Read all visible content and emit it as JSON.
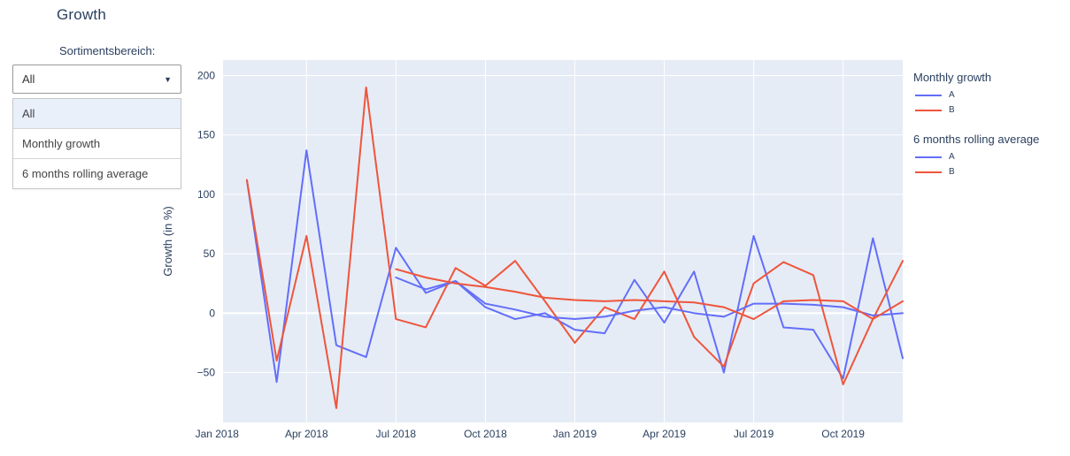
{
  "title": "Growth",
  "controls": {
    "label": "Sortimentsbereich:",
    "dropdown": {
      "value": "All",
      "arrow_icon": "▼",
      "options": [
        "All",
        "Monthly growth",
        "6 months rolling average"
      ],
      "selected_index": 0
    }
  },
  "chart_data": {
    "type": "line",
    "ylabel": "Growth (in %)",
    "plot_bg": "#e5ecf6",
    "text_color": "#2a3f5f",
    "grid_color": "#ffffff",
    "xlim": [
      0.2,
      23.0
    ],
    "ylim": [
      -92,
      213
    ],
    "y_ticks": [
      200,
      150,
      100,
      50,
      0,
      -50
    ],
    "x_tick_positions": [
      0,
      3,
      6,
      9,
      12,
      15,
      18,
      21
    ],
    "x_tick_labels": [
      "Jan 2018",
      "Apr 2018",
      "Jul 2018",
      "Oct 2018",
      "Jan 2019",
      "Apr 2019",
      "Jul 2019",
      "Oct 2019"
    ],
    "x_months": [
      "Feb 2018 through Dec 2019, monthly"
    ],
    "series": [
      {
        "group": "Monthly growth",
        "name": "A",
        "color": "#636efa",
        "x_start": 1,
        "values": [
          112,
          -58,
          137,
          -27,
          -37,
          55,
          17,
          27,
          5,
          -5,
          0,
          -14,
          -17,
          28,
          -8,
          35,
          -50,
          65,
          -12,
          -14,
          -55,
          63,
          -38
        ]
      },
      {
        "group": "Monthly growth",
        "name": "B",
        "color": "#ef553b",
        "x_start": 1,
        "values": [
          112,
          -40,
          65,
          -80,
          190,
          -5,
          -12,
          38,
          23,
          44,
          10,
          -25,
          5,
          -5,
          35,
          -20,
          -45,
          25,
          43,
          32,
          -60,
          -5,
          44
        ]
      },
      {
        "group": "6 months rolling average",
        "name": "A",
        "color": "#636efa",
        "x_start": 6,
        "values": [
          30,
          20,
          27,
          8,
          3,
          -3,
          -5,
          -3,
          2,
          5,
          0,
          -3,
          8,
          8,
          7,
          5,
          -2,
          0
        ]
      },
      {
        "group": "6 months rolling average",
        "name": "B",
        "color": "#ef553b",
        "x_start": 6,
        "values": [
          37,
          30,
          25,
          22,
          18,
          13,
          11,
          10,
          11,
          10,
          9,
          5,
          -5,
          10,
          11,
          10,
          -5,
          10
        ]
      }
    ],
    "legend": {
      "groups": [
        {
          "title": "Monthly growth",
          "items": [
            "A",
            "B"
          ]
        },
        {
          "title": "6 months rolling average",
          "items": [
            "A",
            "B"
          ]
        }
      ]
    }
  }
}
